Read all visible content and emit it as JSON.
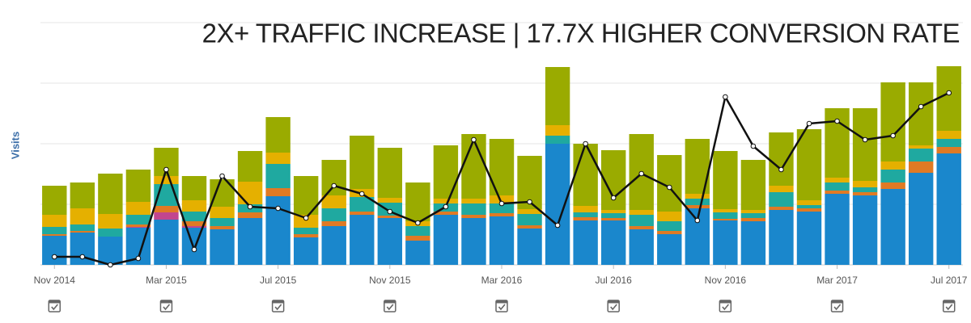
{
  "chart_data": {
    "type": "stacked_bar_line",
    "title": "2X+ TRAFFIC INCREASE | 17.7X HIGHER CONVERSION RATE",
    "y_label": "Visits",
    "categories": [
      "Nov 2014",
      null,
      null,
      null,
      "Mar 2015",
      null,
      null,
      null,
      "Jul 2015",
      null,
      null,
      null,
      "Nov 2015",
      null,
      null,
      null,
      "Mar 2016",
      null,
      null,
      null,
      "Jul 2016",
      null,
      null,
      null,
      "Nov 2016",
      null,
      null,
      null,
      "Mar 2017",
      null,
      null,
      null,
      "Jul 2017"
    ],
    "ylim": [
      0,
      300
    ],
    "yticks": [
      0,
      75,
      150,
      225,
      300
    ],
    "grid": true,
    "series": [
      {
        "color": "#1a87cc",
        "values": [
          36,
          40,
          35,
          46,
          56,
          46,
          44,
          58,
          85,
          34,
          48,
          62,
          58,
          30,
          62,
          58,
          60,
          45,
          150,
          55,
          55,
          44,
          38,
          70,
          55,
          54,
          68,
          66,
          88,
          86,
          94,
          114,
          138
        ]
      },
      {
        "color": "#c2468f",
        "values": [
          0,
          0,
          0,
          1,
          9,
          2,
          0,
          0,
          0,
          0,
          0,
          0,
          0,
          0,
          0,
          0,
          0,
          0,
          0,
          0,
          0,
          0,
          0,
          0,
          0,
          0,
          0,
          0,
          0,
          0,
          0,
          0,
          0
        ]
      },
      {
        "color": "#e07a24",
        "values": [
          2,
          2,
          0,
          3,
          8,
          6,
          4,
          7,
          10,
          4,
          6,
          4,
          3,
          6,
          4,
          4,
          4,
          4,
          0,
          4,
          3,
          4,
          4,
          4,
          2,
          4,
          4,
          4,
          4,
          4,
          8,
          14,
          8
        ]
      },
      {
        "color": "#1fa9a0",
        "values": [
          9,
          8,
          10,
          12,
          27,
          12,
          10,
          10,
          30,
          8,
          16,
          18,
          16,
          12,
          10,
          14,
          12,
          14,
          10,
          6,
          6,
          14,
          12,
          8,
          8,
          6,
          18,
          4,
          10,
          6,
          16,
          16,
          10
        ]
      },
      {
        "color": "#e5b000",
        "values": [
          15,
          20,
          18,
          16,
          10,
          14,
          14,
          28,
          14,
          16,
          16,
          10,
          6,
          6,
          6,
          6,
          10,
          6,
          13,
          8,
          4,
          6,
          12,
          6,
          4,
          4,
          8,
          6,
          6,
          8,
          10,
          4,
          10
        ]
      },
      {
        "color": "#9aab00",
        "values": [
          36,
          32,
          50,
          40,
          35,
          30,
          34,
          38,
          44,
          48,
          44,
          66,
          62,
          48,
          66,
          80,
          70,
          66,
          72,
          77,
          74,
          94,
          70,
          68,
          72,
          62,
          66,
          88,
          86,
          90,
          98,
          78,
          80
        ]
      }
    ],
    "line": {
      "color": "#111111",
      "values": [
        10,
        10,
        0,
        8,
        118,
        19,
        110,
        72,
        70,
        58,
        98,
        88,
        66,
        52,
        72,
        155,
        76,
        78,
        49,
        150,
        83,
        113,
        96,
        55,
        208,
        147,
        118,
        175,
        178,
        155,
        160,
        196,
        213
      ]
    }
  }
}
